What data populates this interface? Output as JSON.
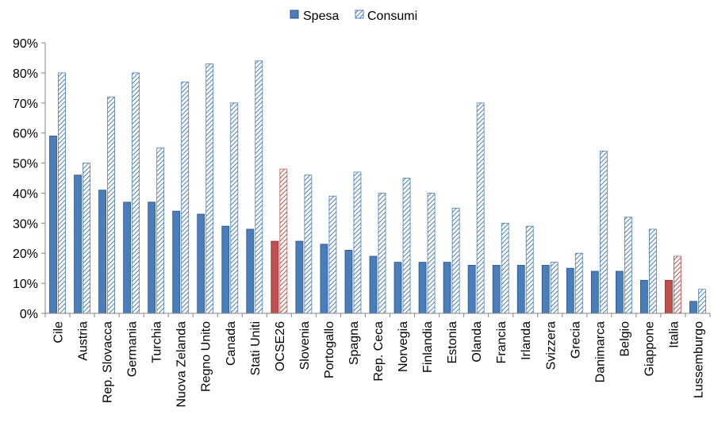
{
  "chart_data": {
    "type": "bar",
    "categories": [
      "Cile",
      "Austria",
      "Rep. Slovacca",
      "Germania",
      "Turchia",
      "Nuova Zelanda",
      "Regno Unito",
      "Canada",
      "Stati Uniti",
      "OCSE26",
      "Slovenia",
      "Portogallo",
      "Spagna",
      "Rep. Ceca",
      "Norvegia",
      "Finlandia",
      "Estonia",
      "Olanda",
      "Francia",
      "Irlanda",
      "Svizzera",
      "Grecia",
      "Danimarca",
      "Belgio",
      "Giappone",
      "Italia",
      "Lussemburgo"
    ],
    "series": [
      {
        "name": "Spesa",
        "values": [
          59,
          46,
          41,
          37,
          37,
          34,
          33,
          29,
          28,
          24,
          24,
          23,
          21,
          19,
          17,
          17,
          17,
          16,
          16,
          16,
          16,
          15,
          14,
          14,
          11,
          11,
          4
        ]
      },
      {
        "name": "Consumi",
        "values": [
          80,
          50,
          72,
          80,
          55,
          77,
          83,
          70,
          84,
          48,
          46,
          39,
          47,
          40,
          45,
          40,
          35,
          70,
          30,
          29,
          17,
          20,
          54,
          32,
          28,
          19,
          8
        ]
      }
    ],
    "highlight_categories": [
      "OCSE26",
      "Italia"
    ],
    "yticks": [
      "0%",
      "10%",
      "20%",
      "30%",
      "40%",
      "50%",
      "60%",
      "70%",
      "80%",
      "90%"
    ],
    "ylim": [
      0,
      90
    ],
    "grid": false,
    "legend_position": "top",
    "colors": {
      "spesa": "#4a7ebb",
      "spesa_edge": "#2c5287",
      "consumi_stripe": "#4a7ebb",
      "highlight": "#c0504d",
      "highlight_edge": "#8c2d2a",
      "axis": "#868686"
    }
  }
}
